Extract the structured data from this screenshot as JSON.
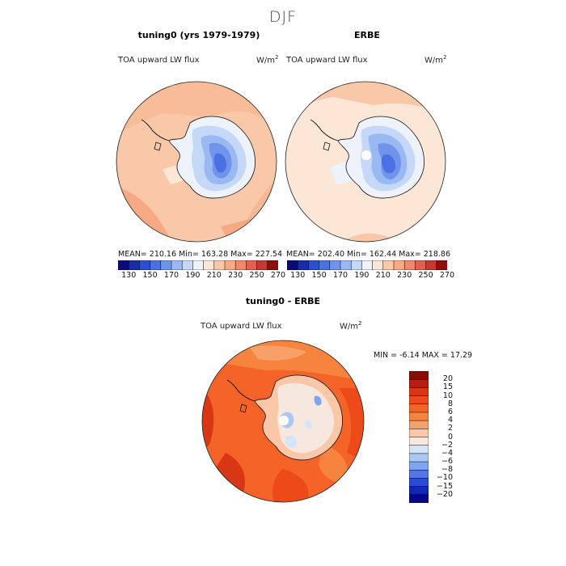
{
  "figure": {
    "title": "DJF",
    "panels": [
      {
        "title": "tuning0 (yrs 1979-1979)",
        "variable": "TOA upward LW flux",
        "units_base": "W/m",
        "units_exp": "2",
        "stats_text": "MEAN= 210.16   Min= 163.28   Max= 227.54"
      },
      {
        "title": "ERBE",
        "variable": "TOA upward LW flux",
        "units_base": "W/m",
        "units_exp": "2",
        "stats_text": "MEAN= 202.40   Min= 162.44   Max= 218.86"
      },
      {
        "title": "tuning0 - ERBE",
        "variable": "TOA upward LW flux",
        "units_base": "W/m",
        "units_exp": "2",
        "stats_text": "MIN =   -6.14  MAX =   17.29"
      }
    ]
  },
  "chart_data": [
    {
      "type": "heatmap",
      "projection": "south polar stereographic",
      "title": "tuning0 (yrs 1979-1979)",
      "variable": "TOA upward LW flux",
      "units": "W/m^2",
      "stats": {
        "mean": 210.16,
        "min": 163.28,
        "max": 227.54
      },
      "colorbar": {
        "orientation": "horizontal",
        "tick_labels": [
          "130",
          "150",
          "170",
          "190",
          "210",
          "230",
          "250",
          "270"
        ],
        "colors": [
          "#0a0a7a",
          "#1a2ca6",
          "#2c4fd0",
          "#4a70e4",
          "#7094ec",
          "#9ab8f2",
          "#c6d8f8",
          "#eef2fb",
          "#fce6d6",
          "#f9c8a8",
          "#f6a982",
          "#f2876a",
          "#e4604e",
          "#c83830",
          "#8c0f0a"
        ]
      }
    },
    {
      "type": "heatmap",
      "projection": "south polar stereographic",
      "title": "ERBE",
      "variable": "TOA upward LW flux",
      "units": "W/m^2",
      "stats": {
        "mean": 202.4,
        "min": 162.44,
        "max": 218.86
      },
      "colorbar": {
        "orientation": "horizontal",
        "tick_labels": [
          "130",
          "150",
          "170",
          "190",
          "210",
          "230",
          "250",
          "270"
        ],
        "colors": [
          "#0a0a7a",
          "#1a2ca6",
          "#2c4fd0",
          "#4a70e4",
          "#7094ec",
          "#9ab8f2",
          "#c6d8f8",
          "#eef2fb",
          "#fce6d6",
          "#f9c8a8",
          "#f6a982",
          "#f2876a",
          "#e4604e",
          "#c83830",
          "#8c0f0a"
        ]
      }
    },
    {
      "type": "heatmap",
      "projection": "south polar stereographic",
      "title": "tuning0 - ERBE",
      "variable": "TOA upward LW flux",
      "units": "W/m^2",
      "stats": {
        "min": -6.14,
        "max": 17.29
      },
      "colorbar": {
        "orientation": "vertical",
        "tick_labels": [
          "20",
          "15",
          "10",
          "8",
          "6",
          "4",
          "2",
          "0",
          "−2",
          "−4",
          "−6",
          "−8",
          "−10",
          "−15",
          "−20"
        ],
        "colors": [
          "#8a0c0a",
          "#b41e0e",
          "#d83614",
          "#ec4a18",
          "#f46428",
          "#f6843e",
          "#f8a06a",
          "#fac8a8",
          "#f6e8de",
          "#d6e4f8",
          "#aac8f4",
          "#80a4ee",
          "#5676e6",
          "#2c4ad8",
          "#1226b4",
          "#06068a"
        ]
      }
    }
  ]
}
